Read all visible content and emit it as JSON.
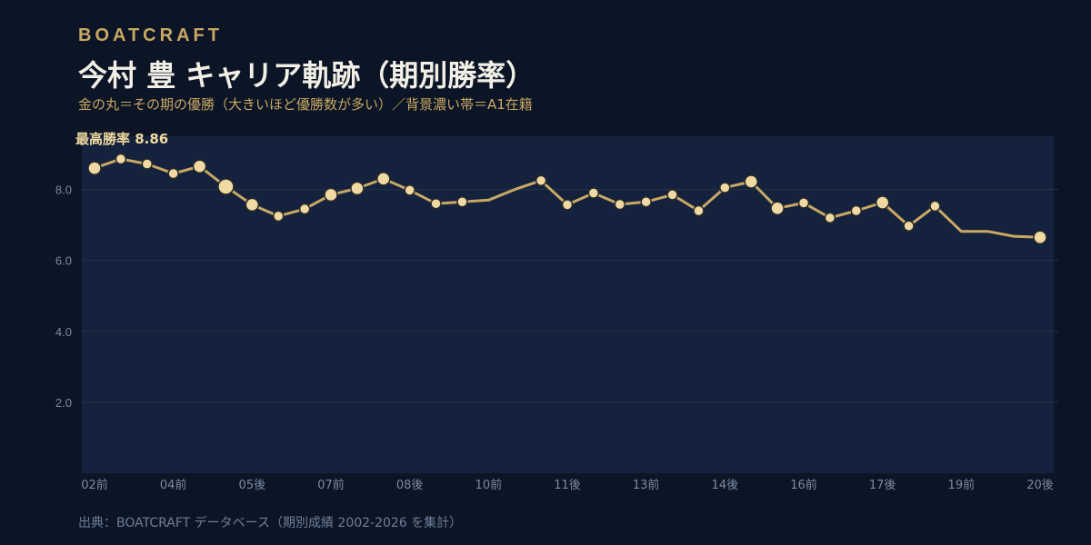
{
  "header": {
    "brand": "BOATCRAFT",
    "title": "今村 豊  キャリア軌跡（期別勝率）",
    "subtitle": "金の丸＝その期の優勝（大きいほど優勝数が多い）／背景濃い帯＝A1在籍"
  },
  "footer": {
    "source": "出典：BOATCRAFT データベース（期別成績 2002-2026 を集計）"
  },
  "colors": {
    "background": "#0b1526",
    "plot_band": "#14223d",
    "line": "#c9a864",
    "marker_fill": "#f0d9a2",
    "marker_stroke": "#2a2a2a",
    "gold_text": "#c9a864",
    "axis_text": "#7d8aa0",
    "peak_text": "#f0d9a2"
  },
  "chart_data": {
    "type": "line",
    "ylim": [
      0,
      9.5
    ],
    "yticks": [
      2,
      4,
      6,
      8
    ],
    "ytick_labels": [
      "2.0",
      "4.0",
      "6.0",
      "8.0"
    ],
    "grid": true,
    "x_tick_labels": [
      "02前",
      "04前",
      "05後",
      "07前",
      "08後",
      "10前",
      "11後",
      "13前",
      "14後",
      "16前",
      "17後",
      "19前",
      "20後"
    ],
    "peak_annotation": "最高勝率 8.86",
    "series": [
      {
        "values": [
          8.6,
          8.86,
          8.72,
          8.45,
          8.65,
          8.08,
          7.57,
          7.25,
          7.45,
          7.85,
          8.03,
          8.3,
          7.98,
          7.6,
          7.65,
          7.7,
          8.0,
          8.25,
          7.57,
          7.9,
          7.58,
          7.65,
          7.85,
          7.4,
          8.05,
          8.22,
          7.47,
          7.62,
          7.2,
          7.4,
          7.63,
          6.97,
          7.53,
          6.82,
          6.82,
          6.68,
          6.65
        ],
        "wins": [
          1,
          0,
          0,
          0,
          1,
          2,
          1,
          0,
          0,
          1,
          1,
          1,
          0,
          0,
          0,
          -1,
          -1,
          0,
          0,
          0,
          0,
          0,
          0,
          0,
          0,
          1,
          1,
          0,
          0,
          0,
          1,
          0,
          0,
          -1,
          -1,
          -1,
          1
        ]
      }
    ]
  }
}
